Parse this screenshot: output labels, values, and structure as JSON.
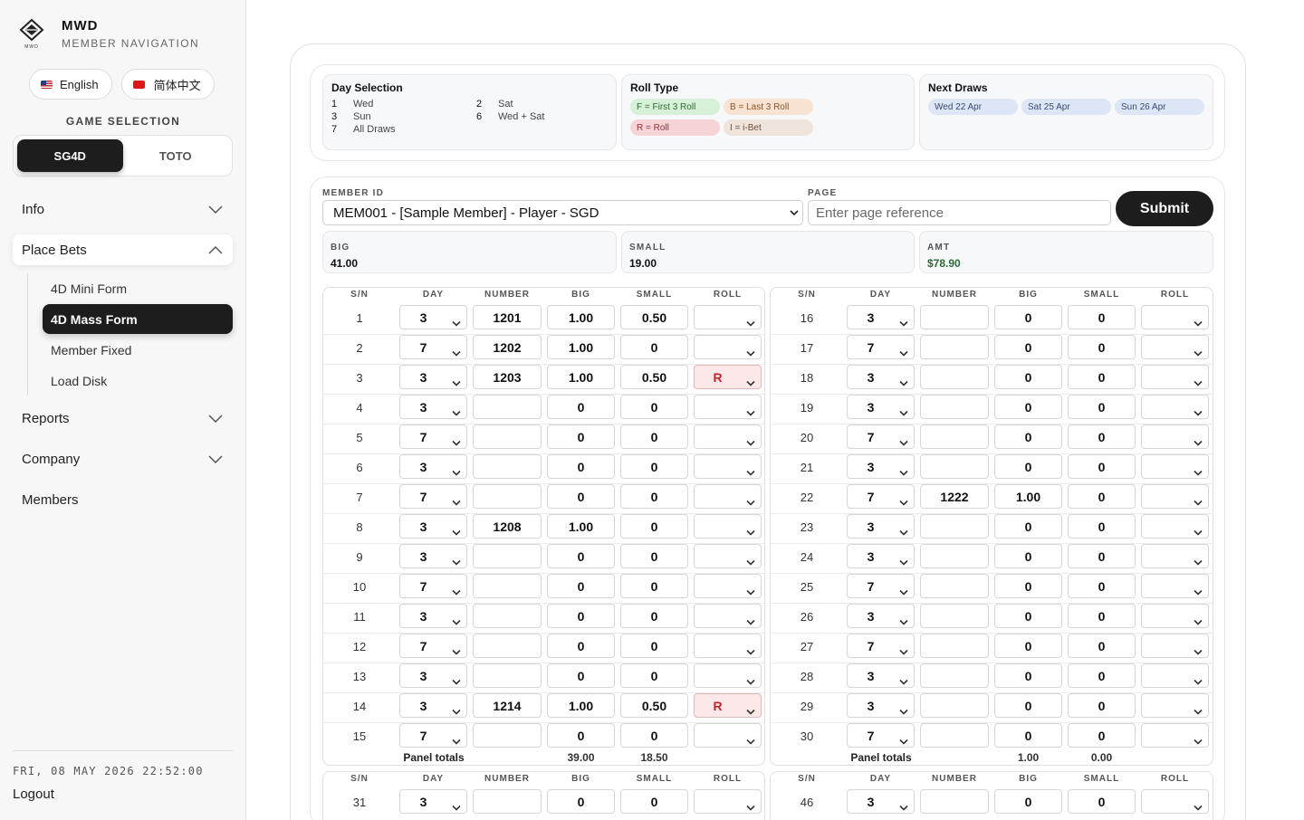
{
  "brand": {
    "title": "MWD",
    "subtitle": "MEMBER NAVIGATION",
    "logo_text": "MWD"
  },
  "languages": [
    {
      "label": "English",
      "icon": "us-flag-icon"
    },
    {
      "label": "简体中文",
      "icon": "cn-flag-icon"
    }
  ],
  "game_selection": {
    "label": "GAME SELECTION",
    "options": [
      "SG4D",
      "TOTO"
    ],
    "active": "SG4D"
  },
  "nav": {
    "info": "Info",
    "place_bets": "Place Bets",
    "sub": [
      "4D Mini Form",
      "4D Mass Form",
      "Member Fixed",
      "Load Disk"
    ],
    "active_sub": "4D Mass Form",
    "reports": "Reports",
    "company": "Company",
    "members": "Members"
  },
  "footer": {
    "datetime": "FRI, 08 MAY 2026 22:52:00",
    "logout": "Logout"
  },
  "day_selection": {
    "title": "Day Selection",
    "items": [
      {
        "k": "1",
        "v": "Wed"
      },
      {
        "k": "2",
        "v": "Sat"
      },
      {
        "k": "3",
        "v": "Sun"
      },
      {
        "k": "6",
        "v": "Wed + Sat"
      },
      {
        "k": "7",
        "v": "All Draws"
      }
    ]
  },
  "roll_type": {
    "title": "Roll Type",
    "items": [
      {
        "label": "F = First 3 Roll",
        "color": "#d7f0d8"
      },
      {
        "label": "B = Last 3 Roll",
        "color": "#f8e3d2"
      },
      {
        "label": "R = Roll",
        "color": "#f6d3d6"
      },
      {
        "label": "I = i-Bet",
        "color": "#efe4dc"
      }
    ]
  },
  "next_draws": {
    "title": "Next Draws",
    "items": [
      "Wed 22 Apr",
      "Sat 25 Apr",
      "Sun 26 Apr"
    ]
  },
  "form": {
    "member_label": "MEMBER ID",
    "member_value": "MEM001 - [Sample Member] - Player - SGD",
    "page_label": "PAGE",
    "page_placeholder": "Enter page reference",
    "submit": "Submit"
  },
  "summary": [
    {
      "label": "BIG",
      "value": "41.00"
    },
    {
      "label": "SMALL",
      "value": "19.00"
    },
    {
      "label": "AMT",
      "value": "$78.90"
    }
  ],
  "columns": [
    "S/N",
    "DAY",
    "NUMBER",
    "BIG",
    "SMALL",
    "ROLL"
  ],
  "totals_label": "Panel totals",
  "panels": [
    {
      "totals": {
        "big": "39.00",
        "small": "18.50"
      },
      "rows": [
        {
          "sn": "1",
          "day": "3",
          "number": "1201",
          "big": "1.00",
          "small": "0.50",
          "roll": ""
        },
        {
          "sn": "2",
          "day": "7",
          "number": "1202",
          "big": "1.00",
          "small": "0",
          "roll": ""
        },
        {
          "sn": "3",
          "day": "3",
          "number": "1203",
          "big": "1.00",
          "small": "0.50",
          "roll": "R"
        },
        {
          "sn": "4",
          "day": "3",
          "number": "",
          "big": "0",
          "small": "0",
          "roll": ""
        },
        {
          "sn": "5",
          "day": "7",
          "number": "",
          "big": "0",
          "small": "0",
          "roll": ""
        },
        {
          "sn": "6",
          "day": "3",
          "number": "",
          "big": "0",
          "small": "0",
          "roll": ""
        },
        {
          "sn": "7",
          "day": "7",
          "number": "",
          "big": "0",
          "small": "0",
          "roll": ""
        },
        {
          "sn": "8",
          "day": "3",
          "number": "1208",
          "big": "1.00",
          "small": "0",
          "roll": ""
        },
        {
          "sn": "9",
          "day": "3",
          "number": "",
          "big": "0",
          "small": "0",
          "roll": ""
        },
        {
          "sn": "10",
          "day": "7",
          "number": "",
          "big": "0",
          "small": "0",
          "roll": ""
        },
        {
          "sn": "11",
          "day": "3",
          "number": "",
          "big": "0",
          "small": "0",
          "roll": ""
        },
        {
          "sn": "12",
          "day": "7",
          "number": "",
          "big": "0",
          "small": "0",
          "roll": ""
        },
        {
          "sn": "13",
          "day": "3",
          "number": "",
          "big": "0",
          "small": "0",
          "roll": ""
        },
        {
          "sn": "14",
          "day": "3",
          "number": "1214",
          "big": "1.00",
          "small": "0.50",
          "roll": "R"
        },
        {
          "sn": "15",
          "day": "7",
          "number": "",
          "big": "0",
          "small": "0",
          "roll": ""
        }
      ]
    },
    {
      "totals": {
        "big": "1.00",
        "small": "0.00"
      },
      "rows": [
        {
          "sn": "16",
          "day": "3",
          "number": "",
          "big": "0",
          "small": "0",
          "roll": ""
        },
        {
          "sn": "17",
          "day": "7",
          "number": "",
          "big": "0",
          "small": "0",
          "roll": ""
        },
        {
          "sn": "18",
          "day": "3",
          "number": "",
          "big": "0",
          "small": "0",
          "roll": ""
        },
        {
          "sn": "19",
          "day": "3",
          "number": "",
          "big": "0",
          "small": "0",
          "roll": ""
        },
        {
          "sn": "20",
          "day": "7",
          "number": "",
          "big": "0",
          "small": "0",
          "roll": ""
        },
        {
          "sn": "21",
          "day": "3",
          "number": "",
          "big": "0",
          "small": "0",
          "roll": ""
        },
        {
          "sn": "22",
          "day": "7",
          "number": "1222",
          "big": "1.00",
          "small": "0",
          "roll": ""
        },
        {
          "sn": "23",
          "day": "3",
          "number": "",
          "big": "0",
          "small": "0",
          "roll": ""
        },
        {
          "sn": "24",
          "day": "3",
          "number": "",
          "big": "0",
          "small": "0",
          "roll": ""
        },
        {
          "sn": "25",
          "day": "7",
          "number": "",
          "big": "0",
          "small": "0",
          "roll": ""
        },
        {
          "sn": "26",
          "day": "3",
          "number": "",
          "big": "0",
          "small": "0",
          "roll": ""
        },
        {
          "sn": "27",
          "day": "7",
          "number": "",
          "big": "0",
          "small": "0",
          "roll": ""
        },
        {
          "sn": "28",
          "day": "3",
          "number": "",
          "big": "0",
          "small": "0",
          "roll": ""
        },
        {
          "sn": "29",
          "day": "3",
          "number": "",
          "big": "0",
          "small": "0",
          "roll": ""
        },
        {
          "sn": "30",
          "day": "7",
          "number": "",
          "big": "0",
          "small": "0",
          "roll": ""
        }
      ]
    },
    {
      "rows": [
        {
          "sn": "31",
          "day": "3",
          "number": "",
          "big": "0",
          "small": "0",
          "roll": ""
        }
      ]
    },
    {
      "rows": [
        {
          "sn": "46",
          "day": "3",
          "number": "",
          "big": "0",
          "small": "0",
          "roll": ""
        }
      ]
    }
  ]
}
